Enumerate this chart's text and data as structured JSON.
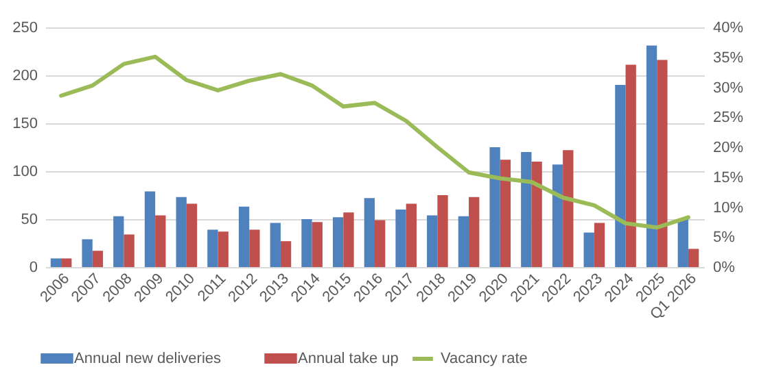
{
  "chart_data": {
    "type": "bar",
    "categories": [
      "2006",
      "2007",
      "2008",
      "2009",
      "2010",
      "2011",
      "2012",
      "2013",
      "2014",
      "2015",
      "2016",
      "2017",
      "2018",
      "2019",
      "2020",
      "2021",
      "2022",
      "2023",
      "2024",
      "2025",
      "Q1 2026"
    ],
    "series": [
      {
        "name": "Annual new deliveries",
        "color": "#4f81bd",
        "values": [
          9,
          29,
          53,
          79,
          73,
          39,
          63,
          46,
          50,
          52,
          72,
          60,
          54,
          53,
          125,
          120,
          107,
          36,
          190,
          231,
          50
        ]
      },
      {
        "name": "Annual take up",
        "color": "#c0504d",
        "values": [
          9,
          17,
          34,
          54,
          66,
          37,
          39,
          27,
          47,
          57,
          49,
          66,
          75,
          73,
          112,
          110,
          122,
          46,
          211,
          216,
          19
        ]
      },
      {
        "name": "Vacancy rate",
        "type": "line",
        "axis": "y2",
        "color": "#9bbb59",
        "values": [
          28.6,
          30.3,
          33.9,
          35.1,
          31.2,
          29.5,
          31.1,
          32.2,
          30.3,
          26.8,
          27.4,
          24.4,
          20,
          15.8,
          14.8,
          14.2,
          11.6,
          10.3,
          7.3,
          6.6,
          8.3
        ]
      }
    ],
    "ylim": [
      0,
      250
    ],
    "yticks": [
      0,
      50,
      100,
      150,
      200,
      250
    ],
    "y2lim": [
      0,
      40
    ],
    "y2ticks": [
      {
        "value": 0,
        "label": "0%"
      },
      {
        "value": 5,
        "label": "5%"
      },
      {
        "value": 10,
        "label": "10%"
      },
      {
        "value": 15,
        "label": "15%"
      },
      {
        "value": 20,
        "label": "20%"
      },
      {
        "value": 25,
        "label": "25%"
      },
      {
        "value": 30,
        "label": "30%"
      },
      {
        "value": 35,
        "label": "35%"
      },
      {
        "value": 40,
        "label": "40%"
      }
    ],
    "grid": "y",
    "legend": "bottom"
  }
}
